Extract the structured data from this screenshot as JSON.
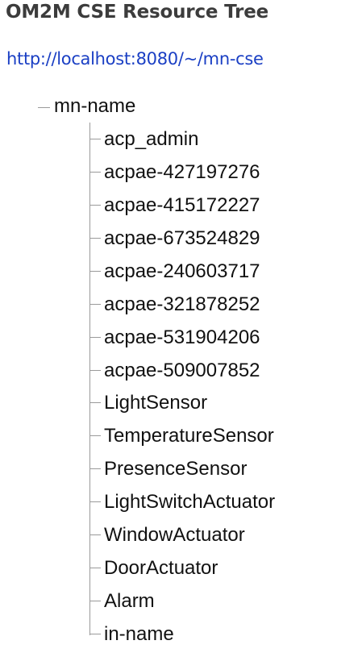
{
  "page": {
    "title": "OM2M CSE Resource Tree",
    "url": "http://localhost:8080/~/mn-cse"
  },
  "tree": {
    "root": "mn-name",
    "children": [
      "acp_admin",
      "acpae-427197276",
      "acpae-415172227",
      "acpae-673524829",
      "acpae-240603717",
      "acpae-321878252",
      "acpae-531904206",
      "acpae-509007852",
      "LightSensor",
      "TemperatureSensor",
      "PresenceSensor",
      "LightSwitchActuator",
      "WindowActuator",
      "DoorActuator",
      "Alarm",
      "in-name"
    ]
  }
}
